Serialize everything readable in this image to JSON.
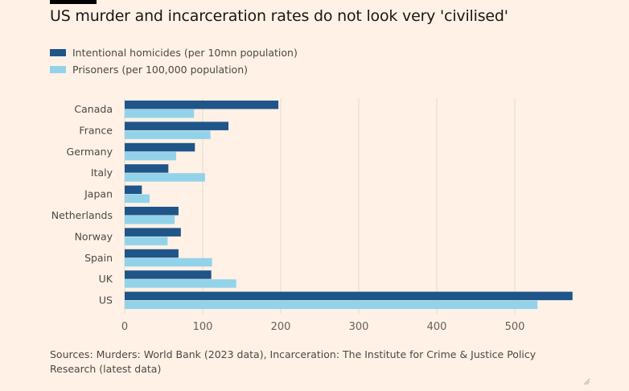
{
  "chart_data": {
    "type": "bar",
    "orientation": "horizontal",
    "title": "US murder and incarceration rates do not look very 'civilised'",
    "categories": [
      "Canada",
      "France",
      "Germany",
      "Italy",
      "Japan",
      "Netherlands",
      "Norway",
      "Spain",
      "UK",
      "US"
    ],
    "series": [
      {
        "name": "Intentional homicides (per 10mn population)",
        "color": "#1f5589",
        "values": [
          197,
          133,
          90,
          56,
          22,
          69,
          72,
          69,
          111,
          574
        ]
      },
      {
        "name": "Prisoners (per 100,000 population)",
        "color": "#92d3ea",
        "values": [
          89,
          110,
          66,
          103,
          32,
          64,
          55,
          112,
          143,
          529
        ]
      }
    ],
    "xlim": [
      0,
      580
    ],
    "xticks": [
      "0",
      "100",
      "200",
      "300",
      "400",
      "500"
    ],
    "grid": true,
    "legend": "top-left",
    "source": "Sources: Murders: World Bank (2023 data), Incarceration: The Institute for Crime & Justice Policy Research (latest data)"
  }
}
